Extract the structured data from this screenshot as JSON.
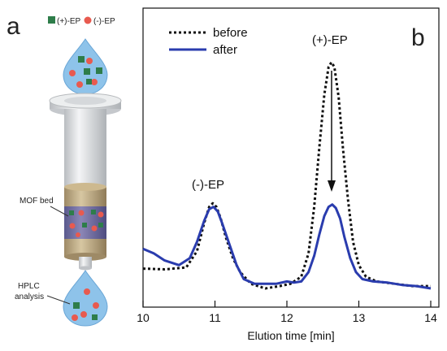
{
  "panel_a": {
    "letter": "a",
    "legend_plus": "(+)-EP",
    "legend_minus": "(-)-EP",
    "bed_label": "MOF bed",
    "analysis_label_line1": "HPLC",
    "analysis_label_line2": "analysis",
    "colors": {
      "plus_marker": "#2e7d4a",
      "minus_marker": "#e85a4f",
      "droplet": "#7fb8e6",
      "column_body": "#d9dcdf",
      "bed": "#b9a37a"
    }
  },
  "panel_b": {
    "letter": "b",
    "annotation_plus": "(+)-EP",
    "annotation_minus": "(-)-EP",
    "arrow": "down arrow from before peak to after peak at (+)-EP"
  },
  "chart_data": {
    "type": "line",
    "title": "",
    "xlabel": "Elution time [min]",
    "ylabel": "",
    "xlim": [
      10,
      14
    ],
    "ylim": [
      0,
      1
    ],
    "xticks": [
      "10",
      "11",
      "12",
      "13",
      "14"
    ],
    "legend_position": "top-left",
    "grid": false,
    "series": [
      {
        "name": "before",
        "style": "dotted",
        "color": "#111111",
        "x": [
          10.0,
          10.3,
          10.6,
          10.75,
          10.85,
          10.92,
          10.97,
          11.02,
          11.08,
          11.15,
          11.25,
          11.35,
          11.5,
          11.7,
          11.9,
          12.05,
          12.2,
          12.3,
          12.38,
          12.45,
          12.52,
          12.58,
          12.62,
          12.66,
          12.72,
          12.78,
          12.85,
          12.92,
          13.0,
          13.1,
          13.25,
          13.5,
          13.75,
          14.0
        ],
        "y": [
          0.085,
          0.082,
          0.09,
          0.16,
          0.28,
          0.35,
          0.365,
          0.35,
          0.3,
          0.22,
          0.13,
          0.07,
          0.02,
          0.0,
          0.01,
          0.02,
          0.05,
          0.15,
          0.35,
          0.6,
          0.83,
          0.95,
          0.97,
          0.95,
          0.82,
          0.6,
          0.38,
          0.2,
          0.1,
          0.05,
          0.03,
          0.02,
          0.01,
          0.01
        ]
      },
      {
        "name": "after",
        "style": "solid",
        "color": "#2a3cae",
        "x": [
          10.0,
          10.15,
          10.3,
          10.5,
          10.65,
          10.75,
          10.85,
          10.92,
          10.98,
          11.04,
          11.1,
          11.2,
          11.3,
          11.4,
          11.55,
          11.7,
          11.85,
          12.0,
          12.1,
          12.2,
          12.3,
          12.38,
          12.45,
          12.52,
          12.58,
          12.63,
          12.68,
          12.74,
          12.8,
          12.88,
          12.96,
          13.05,
          13.2,
          13.4,
          13.6,
          13.8,
          14.0
        ],
        "y": [
          0.17,
          0.15,
          0.12,
          0.1,
          0.13,
          0.2,
          0.29,
          0.34,
          0.35,
          0.33,
          0.28,
          0.19,
          0.1,
          0.04,
          0.02,
          0.02,
          0.02,
          0.03,
          0.025,
          0.03,
          0.07,
          0.14,
          0.23,
          0.31,
          0.35,
          0.36,
          0.345,
          0.3,
          0.22,
          0.13,
          0.07,
          0.04,
          0.03,
          0.025,
          0.015,
          0.01,
          0.0
        ]
      }
    ]
  }
}
